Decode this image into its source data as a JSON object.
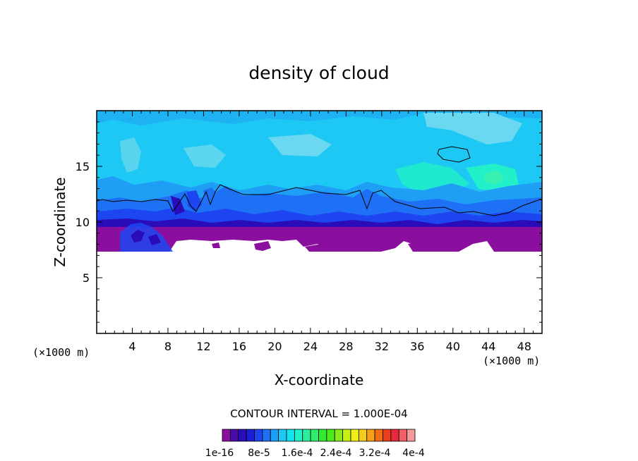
{
  "chart_data": {
    "type": "heatmap",
    "title": "density of cloud",
    "xlabel": "X-coordinate",
    "ylabel": "Z-coordinate",
    "x_unit_label": "(×1000 m)",
    "y_unit_label": "(×1000 m)",
    "xlim": [
      0,
      50
    ],
    "ylim": [
      0,
      20
    ],
    "x_ticks": [
      4,
      8,
      12,
      16,
      20,
      24,
      28,
      32,
      36,
      40,
      44,
      48
    ],
    "y_ticks": [
      5,
      10,
      15
    ],
    "contour_interval_text": "CONTOUR INTERVAL = 1.000E-04",
    "colorbar": {
      "colors": [
        "#8a0f9e",
        "#4b0ba8",
        "#2a0cb8",
        "#1a1fd6",
        "#1d46f0",
        "#1e70f5",
        "#1e9ef5",
        "#1ec8f5",
        "#14e4ee",
        "#22f0c8",
        "#29ef9c",
        "#2fee6c",
        "#33ea33",
        "#4cea1c",
        "#8aea18",
        "#c8ef18",
        "#eeee1a",
        "#f6cc1a",
        "#f6a01a",
        "#f06e18",
        "#e8401c",
        "#e8283c",
        "#f0606a",
        "#f59a9a"
      ],
      "labels": [
        "1e-16",
        "8e-5",
        "1.6e-4",
        "2.4e-4",
        "3.2e-4",
        "4e-4"
      ]
    },
    "bands": [
      {
        "name": "no cloud",
        "color": "#ffffff",
        "z_range": [
          0,
          7.3
        ]
      },
      {
        "name": "purple",
        "color": "#8a0f9e",
        "z_range": [
          7.3,
          9.6
        ]
      },
      {
        "name": "dark blue",
        "color": "#2a0cb8",
        "z_range": [
          9.6,
          10.5
        ]
      },
      {
        "name": "blue",
        "color": "#1d46f0",
        "z_range": [
          10.5,
          11.3
        ]
      },
      {
        "name": "mid blue",
        "color": "#1e70f5",
        "z_range": [
          11.3,
          12.3
        ]
      },
      {
        "name": "light blue",
        "color": "#1e9ef5",
        "z_range": [
          12.3,
          14
        ]
      },
      {
        "name": "cyan",
        "color": "#1ec8f5",
        "z_range": [
          14,
          20
        ]
      }
    ]
  }
}
